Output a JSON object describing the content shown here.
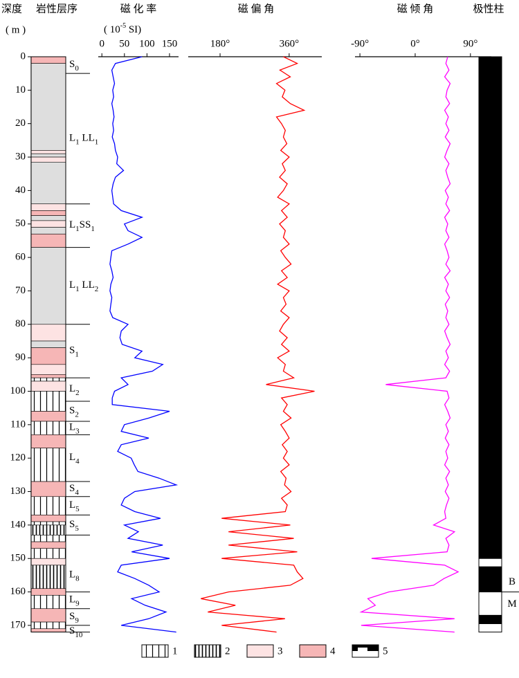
{
  "chart_data": {
    "type": "log",
    "depth_title": "深度",
    "depth_unit": "( m )",
    "ylim": [
      0,
      172
    ],
    "yticks": [
      0,
      10,
      20,
      30,
      40,
      50,
      60,
      70,
      80,
      90,
      100,
      110,
      120,
      130,
      140,
      150,
      160,
      170
    ],
    "depths": [
      0,
      2,
      4,
      6,
      8,
      10,
      12,
      14,
      16,
      18,
      20,
      22,
      24,
      26,
      28,
      30,
      32,
      34,
      36,
      38,
      40,
      42,
      44,
      46,
      48,
      50,
      52,
      54,
      56,
      58,
      60,
      62,
      64,
      66,
      68,
      70,
      72,
      74,
      76,
      78,
      80,
      82,
      84,
      86,
      88,
      90,
      92,
      94,
      96,
      98,
      100,
      102,
      104,
      106,
      108,
      110,
      112,
      114,
      116,
      118,
      120,
      122,
      124,
      126,
      128,
      130,
      132,
      134,
      136,
      138,
      140,
      142,
      144,
      146,
      148,
      150,
      152,
      154,
      156,
      158,
      160,
      162,
      164,
      166,
      168,
      170,
      172
    ],
    "lithology": {
      "title": "岩性层序",
      "layers": [
        {
          "top": 0,
          "bottom": 2,
          "kind": "p4"
        },
        {
          "top": 2,
          "bottom": 28,
          "kind": "gray"
        },
        {
          "top": 28,
          "bottom": 29,
          "kind": "p3"
        },
        {
          "top": 29,
          "bottom": 30,
          "kind": "gray"
        },
        {
          "top": 30,
          "bottom": 31.5,
          "kind": "p3"
        },
        {
          "top": 31.5,
          "bottom": 44,
          "kind": "gray"
        },
        {
          "top": 44,
          "bottom": 46,
          "kind": "p3"
        },
        {
          "top": 46,
          "bottom": 47.5,
          "kind": "p4"
        },
        {
          "top": 47.5,
          "bottom": 49,
          "kind": "gray"
        },
        {
          "top": 49,
          "bottom": 51,
          "kind": "p3"
        },
        {
          "top": 51,
          "bottom": 53,
          "kind": "gray"
        },
        {
          "top": 53,
          "bottom": 57,
          "kind": "p4"
        },
        {
          "top": 57,
          "bottom": 80,
          "kind": "gray"
        },
        {
          "top": 80,
          "bottom": 85,
          "kind": "p3"
        },
        {
          "top": 85,
          "bottom": 87,
          "kind": "gray"
        },
        {
          "top": 87,
          "bottom": 92,
          "kind": "p4"
        },
        {
          "top": 92,
          "bottom": 95,
          "kind": "p3"
        },
        {
          "top": 95,
          "bottom": 96,
          "kind": "p4"
        },
        {
          "top": 96,
          "bottom": 97,
          "kind": "h1"
        },
        {
          "top": 97,
          "bottom": 100,
          "kind": "p3"
        },
        {
          "top": 100,
          "bottom": 106,
          "kind": "h1"
        },
        {
          "top": 106,
          "bottom": 109,
          "kind": "p4"
        },
        {
          "top": 109,
          "bottom": 113,
          "kind": "h1"
        },
        {
          "top": 113,
          "bottom": 117,
          "kind": "p4"
        },
        {
          "top": 117,
          "bottom": 127,
          "kind": "h1"
        },
        {
          "top": 127,
          "bottom": 131.5,
          "kind": "p4"
        },
        {
          "top": 131.5,
          "bottom": 137,
          "kind": "h1"
        },
        {
          "top": 137,
          "bottom": 139,
          "kind": "p4"
        },
        {
          "top": 139,
          "bottom": 140,
          "kind": "h1"
        },
        {
          "top": 140,
          "bottom": 143,
          "kind": "h2"
        },
        {
          "top": 143,
          "bottom": 145,
          "kind": "h1"
        },
        {
          "top": 145,
          "bottom": 147,
          "kind": "p4"
        },
        {
          "top": 147,
          "bottom": 150,
          "kind": "h1"
        },
        {
          "top": 150,
          "bottom": 152,
          "kind": "p3"
        },
        {
          "top": 152,
          "bottom": 159,
          "kind": "h2"
        },
        {
          "top": 159,
          "bottom": 161,
          "kind": "p4"
        },
        {
          "top": 161,
          "bottom": 165,
          "kind": "h1"
        },
        {
          "top": 165,
          "bottom": 169,
          "kind": "p4"
        },
        {
          "top": 169,
          "bottom": 171,
          "kind": "h1"
        },
        {
          "top": 171,
          "bottom": 172,
          "kind": "p4"
        }
      ],
      "units": [
        {
          "parts": [
            "S",
            "0"
          ],
          "top": 0,
          "bottom": 5
        },
        {
          "parts": [
            "L",
            "1",
            " LL",
            "1"
          ],
          "top": 5,
          "bottom": 44
        },
        {
          "parts": [
            "L",
            "1",
            "SS",
            "1"
          ],
          "top": 44,
          "bottom": 57
        },
        {
          "parts": [
            "L",
            "1",
            " LL",
            "2"
          ],
          "top": 57,
          "bottom": 80
        },
        {
          "parts": [
            "S",
            "1"
          ],
          "top": 80,
          "bottom": 96
        },
        {
          "parts": [
            "L",
            "2"
          ],
          "top": 96,
          "bottom": 103
        },
        {
          "parts": [
            "S",
            "2"
          ],
          "top": 103,
          "bottom": 109
        },
        {
          "parts": [
            "L",
            "3"
          ],
          "top": 109,
          "bottom": 113
        },
        {
          "parts": [
            "L",
            "4"
          ],
          "top": 113,
          "bottom": 127
        },
        {
          "parts": [
            "S",
            "4"
          ],
          "top": 127,
          "bottom": 131.5
        },
        {
          "parts": [
            "L",
            "5"
          ],
          "top": 131.5,
          "bottom": 137
        },
        {
          "parts": [
            "S",
            "5"
          ],
          "top": 137,
          "bottom": 143
        },
        {
          "parts": [
            "L",
            "8"
          ],
          "top": 150,
          "bottom": 160
        },
        {
          "parts": [
            "L",
            "9"
          ],
          "top": 160,
          "bottom": 165
        },
        {
          "parts": [
            "S",
            "9"
          ],
          "top": 165,
          "bottom": 170
        },
        {
          "parts": [
            "S",
            "10"
          ],
          "top": 170,
          "bottom": 172
        }
      ]
    },
    "susceptibility": {
      "title": "磁 化 率",
      "unit": [
        "( 10",
        "-5",
        " SI)"
      ],
      "color": "#0000ff",
      "xlim": [
        -8,
        170
      ],
      "xticks": [
        0,
        50,
        100,
        150
      ],
      "values": [
        89,
        30,
        22,
        25,
        28,
        24,
        26,
        22,
        25,
        27,
        24,
        26,
        23,
        28,
        30,
        35,
        33,
        48,
        30,
        25,
        22,
        24,
        26,
        43,
        89,
        50,
        58,
        89,
        58,
        22,
        20,
        18,
        22,
        25,
        20,
        18,
        22,
        20,
        18,
        24,
        58,
        43,
        40,
        45,
        89,
        73,
        135,
        112,
        43,
        58,
        28,
        23,
        23,
        150,
        104,
        50,
        43,
        104,
        43,
        35,
        65,
        72,
        80,
        127,
        165,
        73,
        50,
        43,
        73,
        130,
        50,
        81,
        58,
        135,
        66,
        150,
        43,
        35,
        73,
        104,
        127,
        66,
        96,
        142,
        104,
        43,
        165
      ]
    },
    "declination": {
      "title": "磁 偏 角",
      "color": "#ff0000",
      "xlim": [
        97,
        445
      ],
      "xticks": [
        {
          "value": 180,
          "label": "180°"
        },
        {
          "value": 360,
          "label": "360°"
        }
      ],
      "values": [
        345,
        381,
        336,
        363,
        327,
        349,
        342,
        363,
        399,
        327,
        340,
        350,
        345,
        354,
        338,
        360,
        342,
        350,
        335,
        355,
        345,
        330,
        360,
        340,
        355,
        335,
        350,
        345,
        360,
        338,
        350,
        365,
        340,
        355,
        330,
        360,
        345,
        352,
        338,
        360,
        345,
        335,
        355,
        340,
        360,
        330,
        350,
        345,
        372,
        300,
        426,
        340,
        355,
        345,
        365,
        338,
        350,
        360,
        342,
        355,
        345,
        360,
        338,
        352,
        348,
        365,
        340,
        355,
        350,
        184,
        363,
        202,
        372,
        202,
        381,
        184,
        372,
        381,
        396,
        363,
        202,
        130,
        220,
        148,
        349,
        184,
        327
      ]
    },
    "inclination": {
      "title": "磁 倾 角",
      "color": "#ff00ff",
      "xlim": [
        -98,
        124
      ],
      "xticks": [
        {
          "value": -90,
          "label": "-90°"
        },
        {
          "value": 0,
          "label": "0°"
        },
        {
          "value": 90,
          "label": "90°"
        }
      ],
      "values": [
        53,
        50,
        55,
        48,
        57,
        52,
        50,
        56,
        48,
        54,
        50,
        55,
        49,
        57,
        52,
        48,
        55,
        50,
        53,
        57,
        49,
        54,
        50,
        56,
        48,
        53,
        50,
        55,
        48,
        52,
        55,
        50,
        57,
        48,
        54,
        50,
        56,
        49,
        53,
        50,
        55,
        48,
        52,
        57,
        50,
        54,
        48,
        56,
        50,
        -48,
        52,
        55,
        48,
        53,
        57,
        50,
        54,
        49,
        55,
        50,
        53,
        48,
        56,
        50,
        54,
        49,
        55,
        51,
        48,
        50,
        30,
        64,
        50,
        55,
        52,
        -71,
        48,
        70,
        47,
        30,
        -43,
        -77,
        -65,
        -88,
        64,
        -88,
        64
      ]
    },
    "polarity": {
      "title": "极性柱",
      "intervals": [
        {
          "top": 0,
          "bottom": 150,
          "polarity": "normal"
        },
        {
          "top": 150,
          "bottom": 152.5,
          "polarity": "reverse"
        },
        {
          "top": 152.5,
          "bottom": 160,
          "polarity": "normal"
        },
        {
          "top": 160,
          "bottom": 167,
          "polarity": "reverse"
        },
        {
          "top": 167,
          "bottom": 169.5,
          "polarity": "normal"
        },
        {
          "top": 169.5,
          "bottom": 172,
          "polarity": "reverse"
        }
      ],
      "boundary": {
        "depth": 160,
        "above": "B",
        "below": "M"
      }
    },
    "legend": [
      {
        "label": "1",
        "kind": "h1"
      },
      {
        "label": "2",
        "kind": "h2"
      },
      {
        "label": "3",
        "kind": "p3"
      },
      {
        "label": "4",
        "kind": "p4"
      },
      {
        "label": "5",
        "kind": "polarity"
      }
    ]
  }
}
